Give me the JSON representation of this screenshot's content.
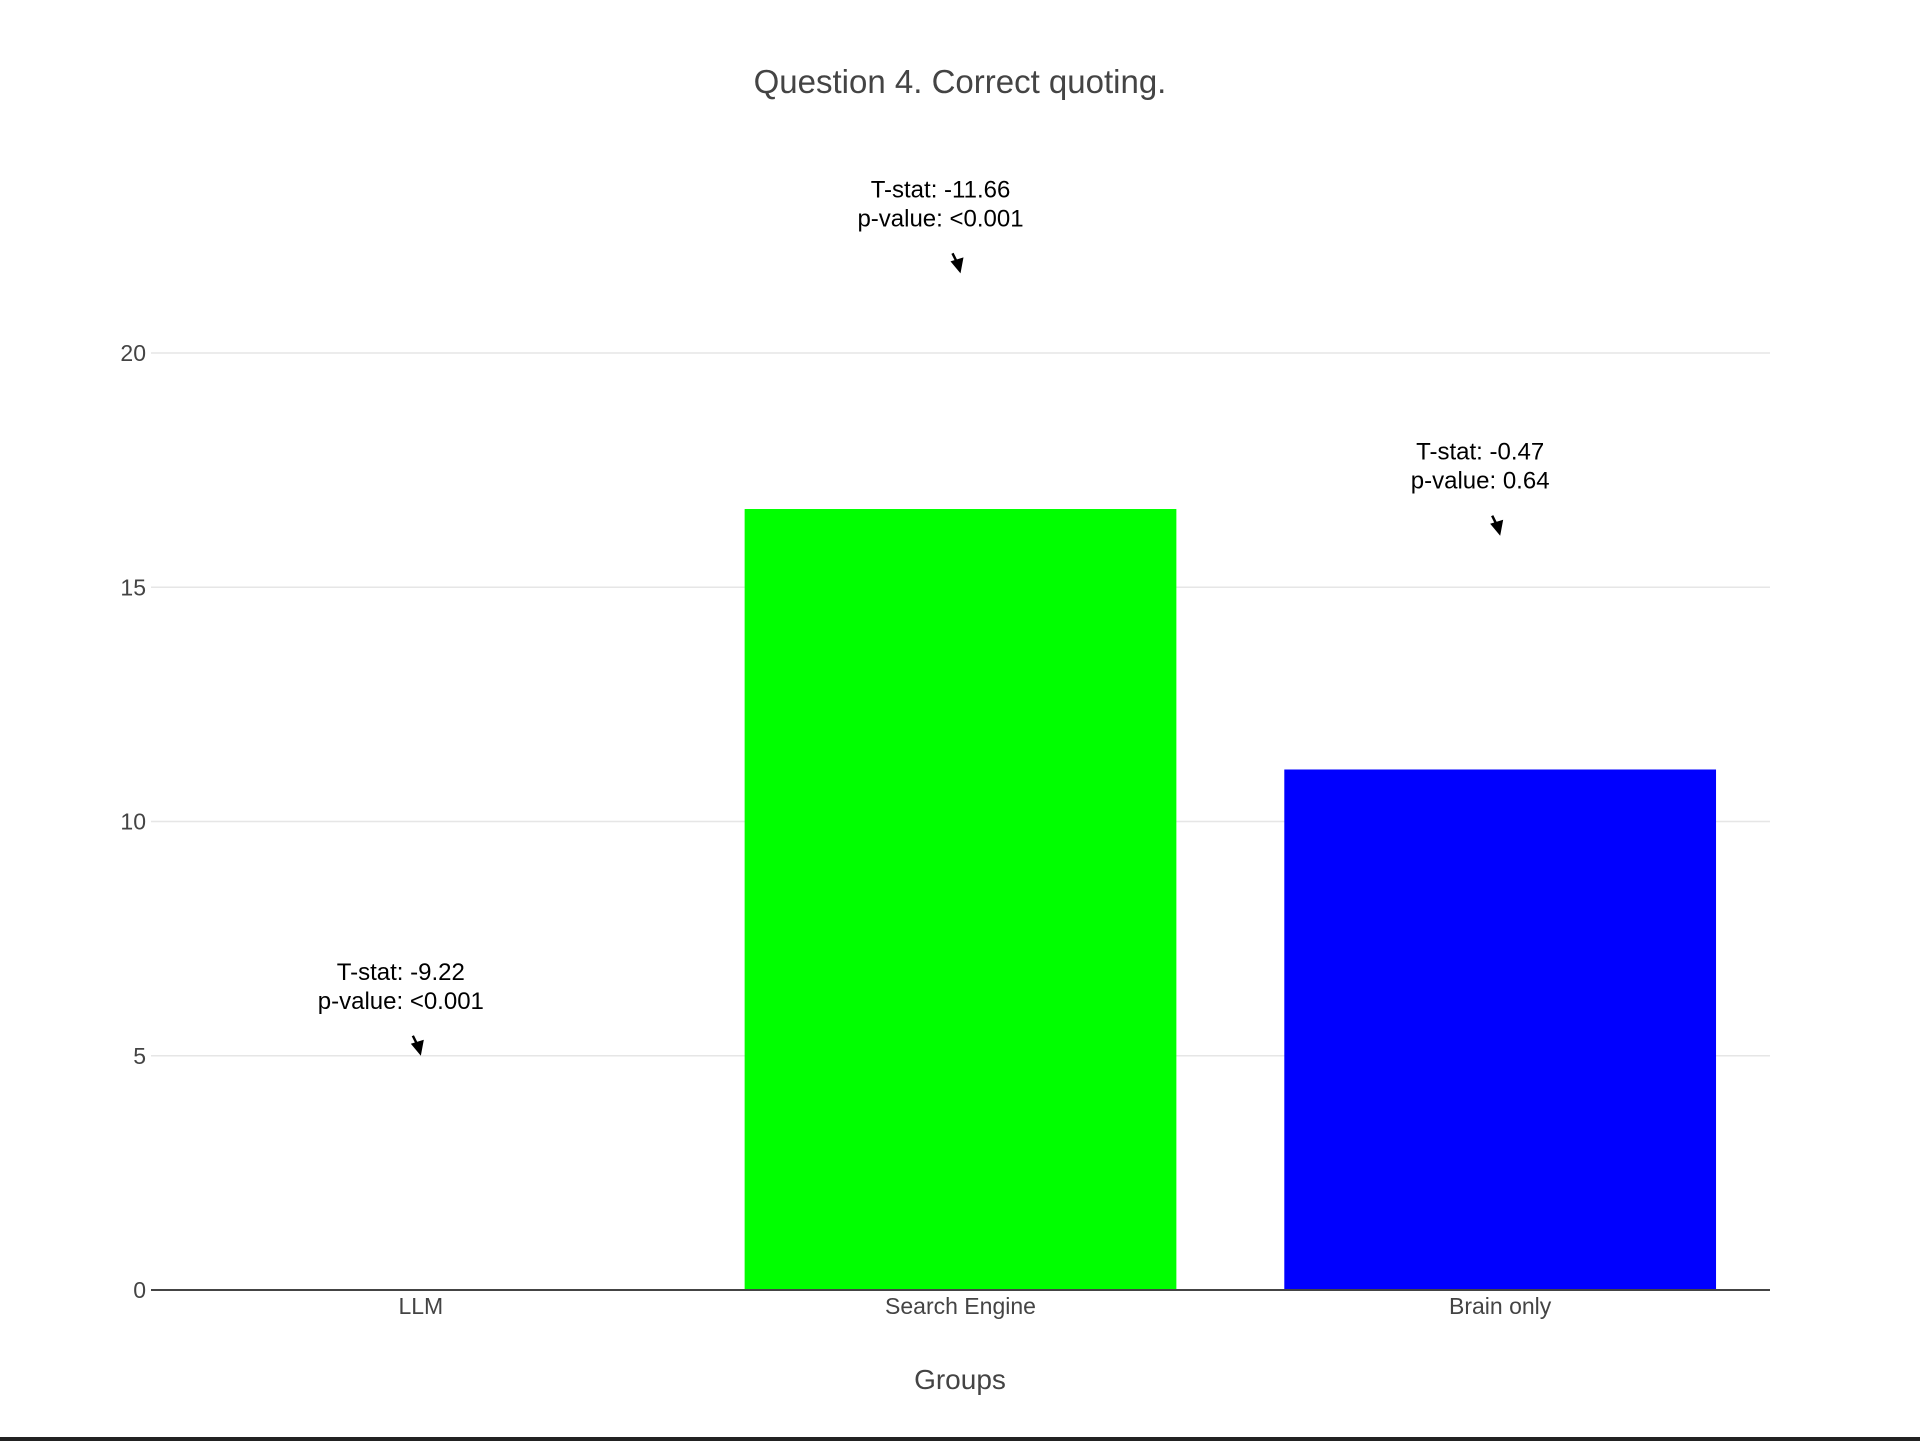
{
  "chart_data": {
    "type": "bar",
    "title": "Question 4. Correct quoting.",
    "xlabel": "Groups",
    "ylabel": "",
    "categories": [
      "LLM",
      "Search Engine",
      "Brain only"
    ],
    "values": [
      0,
      16.67,
      11.11
    ],
    "colors": [
      "#00ff00",
      "#00ff00",
      "#0000ff"
    ],
    "ylim": [
      0,
      23.5
    ],
    "yticks": [
      0,
      5,
      10,
      15,
      20
    ],
    "grid": true,
    "legend": "none",
    "annotations": [
      {
        "category": "LLM",
        "y": 5,
        "lines": [
          "T-stat: -9.22",
          "p-value: <0.001"
        ]
      },
      {
        "category": "Search Engine",
        "y": 21.7,
        "lines": [
          "T-stat: -11.66",
          "p-value: <0.001"
        ]
      },
      {
        "category": "Brain only",
        "y": 16.1,
        "lines": [
          "T-stat: -0.47",
          "p-value: 0.64"
        ]
      }
    ]
  }
}
